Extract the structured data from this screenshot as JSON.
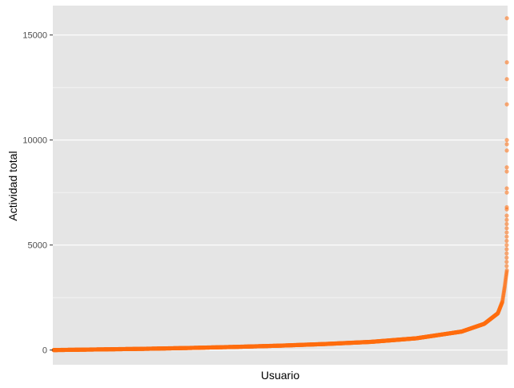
{
  "chart_data": {
    "type": "scatter",
    "xlabel": "Usuario",
    "ylabel": "Actividad total",
    "ylim": [
      -700,
      16400
    ],
    "yticks": [
      0,
      5000,
      10000,
      15000
    ],
    "ytick_labels": [
      "0",
      "5000",
      "10000",
      "15000"
    ],
    "grid": true,
    "x_tick_labels": "none",
    "n_users": 2000,
    "point_color": "#ff6e0f",
    "panel_background": "#e5e5e5",
    "gridline_color": "#ffffff",
    "curve_samples": [
      {
        "rank_fraction": 0.0,
        "value": 0
      },
      {
        "rank_fraction": 0.1,
        "value": 30
      },
      {
        "rank_fraction": 0.2,
        "value": 60
      },
      {
        "rank_fraction": 0.3,
        "value": 100
      },
      {
        "rank_fraction": 0.4,
        "value": 150
      },
      {
        "rank_fraction": 0.5,
        "value": 210
      },
      {
        "rank_fraction": 0.6,
        "value": 290
      },
      {
        "rank_fraction": 0.7,
        "value": 390
      },
      {
        "rank_fraction": 0.8,
        "value": 560
      },
      {
        "rank_fraction": 0.9,
        "value": 880
      },
      {
        "rank_fraction": 0.95,
        "value": 1250
      },
      {
        "rank_fraction": 0.98,
        "value": 1750
      },
      {
        "rank_fraction": 0.99,
        "value": 2300
      },
      {
        "rank_fraction": 0.995,
        "value": 3000
      },
      {
        "rank_fraction": 1.0,
        "value": 3800
      }
    ],
    "outliers": [
      15800,
      13700,
      12900,
      11700,
      10000,
      9800,
      9500,
      8700,
      8500,
      7700,
      7500,
      6800,
      6700,
      6400,
      6200,
      6000,
      5800,
      5600,
      5400,
      5200,
      5000,
      4800,
      4600,
      4400,
      4200,
      4000
    ]
  }
}
